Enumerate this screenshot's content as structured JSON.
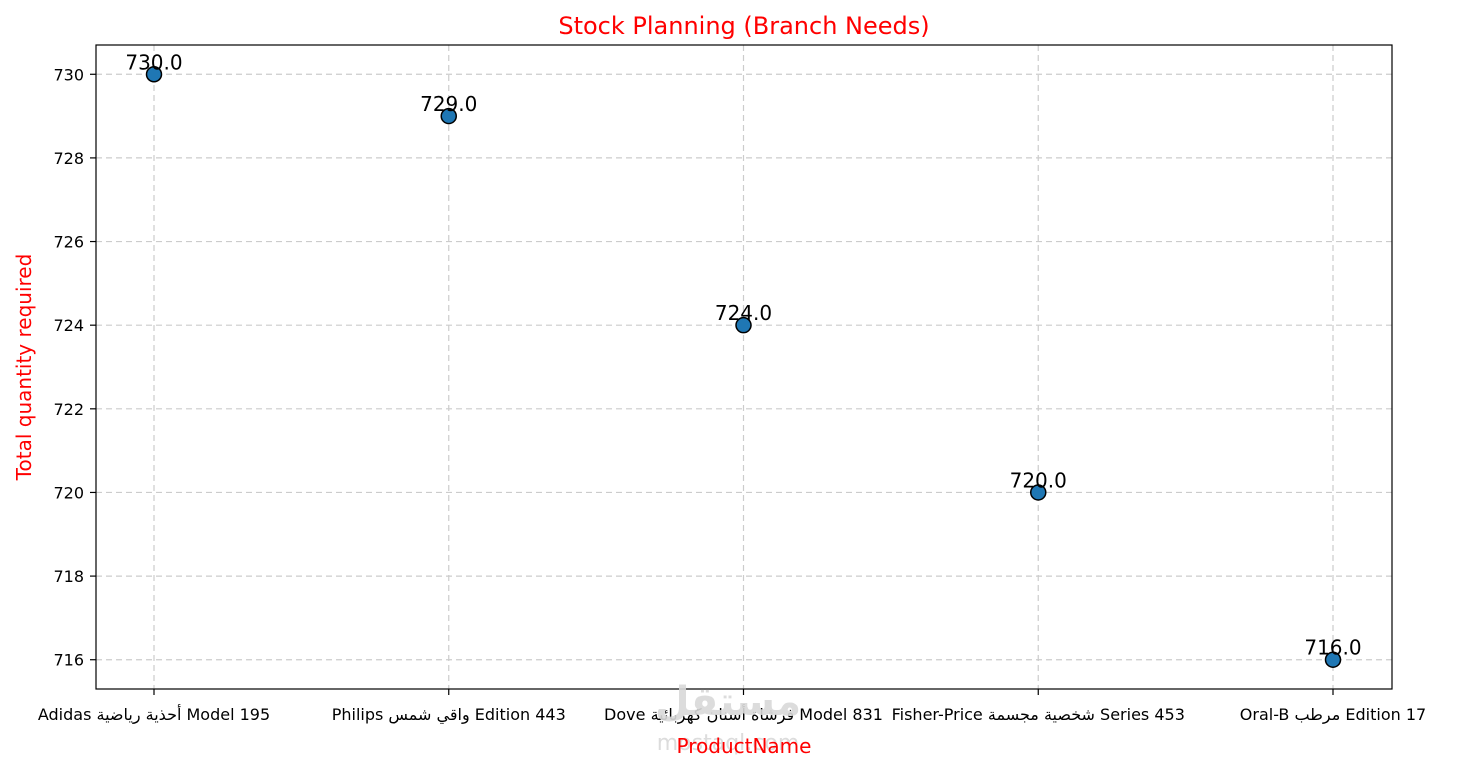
{
  "chart_data": {
    "type": "scatter",
    "title": "Stock Planning (Branch Needs)",
    "xlabel": "ProductName",
    "ylabel": "Total quantity required",
    "categories": [
      "Adidas أحذية رياضية Model 195",
      "Philips واقي شمس Edition 443",
      "Dove فرشاة أسنان كهربائية Model 831",
      "Fisher-Price شخصية مجسمة Series 453",
      "Oral-B مرطب Edition 17"
    ],
    "values": [
      730.0,
      729.0,
      724.0,
      720.0,
      716.0
    ],
    "value_labels": [
      "730.0",
      "729.0",
      "724.0",
      "720.0",
      "716.0"
    ],
    "yticks": [
      716,
      718,
      720,
      722,
      724,
      726,
      728,
      730
    ],
    "ytick_labels": [
      "716",
      "718",
      "720",
      "722",
      "724",
      "726",
      "728",
      "730"
    ],
    "ylim": [
      715.3,
      730.7
    ],
    "grid": true,
    "colors": {
      "marker": "#1f77b4",
      "marker_edge": "#000000",
      "title": "#ff0000",
      "axis_label": "#ff0000",
      "grid": "#cccccc"
    }
  },
  "watermark": {
    "main": "مستقل",
    "sub": "mostaql.com"
  }
}
